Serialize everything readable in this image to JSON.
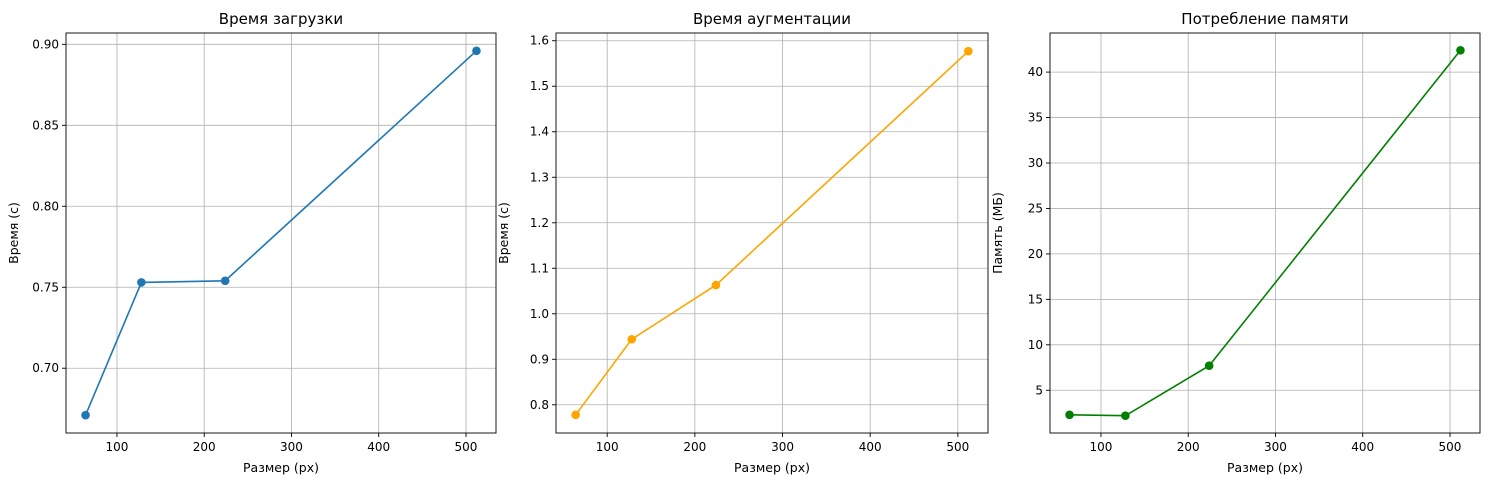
{
  "chart_data": [
    {
      "type": "line",
      "title": "Время загрузки",
      "xlabel": "Размер (px)",
      "ylabel": "Время (с)",
      "xlim": [
        41.6,
        534.4
      ],
      "ylim": [
        0.66,
        0.907
      ],
      "xticks": [
        100,
        200,
        300,
        400,
        500
      ],
      "xtick_labels": [
        "100",
        "200",
        "300",
        "400",
        "500"
      ],
      "yticks": [
        0.7,
        0.75,
        0.8,
        0.85,
        0.9
      ],
      "ytick_labels": [
        "0.70",
        "0.75",
        "0.80",
        "0.85",
        "0.90"
      ],
      "grid": true,
      "series": [
        {
          "color": "#1f77b4",
          "marker": "circle",
          "x": [
            64,
            128,
            224,
            512
          ],
          "y": [
            0.671,
            0.753,
            0.754,
            0.896
          ]
        }
      ]
    },
    {
      "type": "line",
      "title": "Время аугментации",
      "xlabel": "Размер (px)",
      "ylabel": "Время (с)",
      "xlim": [
        41.6,
        534.4
      ],
      "ylim": [
        0.738,
        1.617
      ],
      "xticks": [
        100,
        200,
        300,
        400,
        500
      ],
      "xtick_labels": [
        "100",
        "200",
        "300",
        "400",
        "500"
      ],
      "yticks": [
        0.8,
        0.9,
        1.0,
        1.1,
        1.2,
        1.3,
        1.4,
        1.5,
        1.6
      ],
      "ytick_labels": [
        "0.8",
        "0.9",
        "1.0",
        "1.1",
        "1.2",
        "1.3",
        "1.4",
        "1.5",
        "1.6"
      ],
      "grid": true,
      "series": [
        {
          "color": "#ffa500",
          "marker": "circle",
          "x": [
            64,
            128,
            224,
            512
          ],
          "y": [
            0.778,
            0.944,
            1.063,
            1.577
          ]
        }
      ]
    },
    {
      "type": "line",
      "title": "Потребление памяти",
      "xlabel": "Размер (px)",
      "ylabel": "Память (МБ)",
      "xlim": [
        41.6,
        534.4
      ],
      "ylim": [
        0.3,
        44.3
      ],
      "xticks": [
        100,
        200,
        300,
        400,
        500
      ],
      "xtick_labels": [
        "100",
        "200",
        "300",
        "400",
        "500"
      ],
      "yticks": [
        5,
        10,
        15,
        20,
        25,
        30,
        35,
        40
      ],
      "ytick_labels": [
        "5",
        "10",
        "15",
        "20",
        "25",
        "30",
        "35",
        "40"
      ],
      "grid": true,
      "series": [
        {
          "color": "#008000",
          "marker": "circle",
          "x": [
            64,
            128,
            224,
            512
          ],
          "y": [
            2.3,
            2.2,
            7.7,
            42.4
          ]
        }
      ]
    }
  ]
}
